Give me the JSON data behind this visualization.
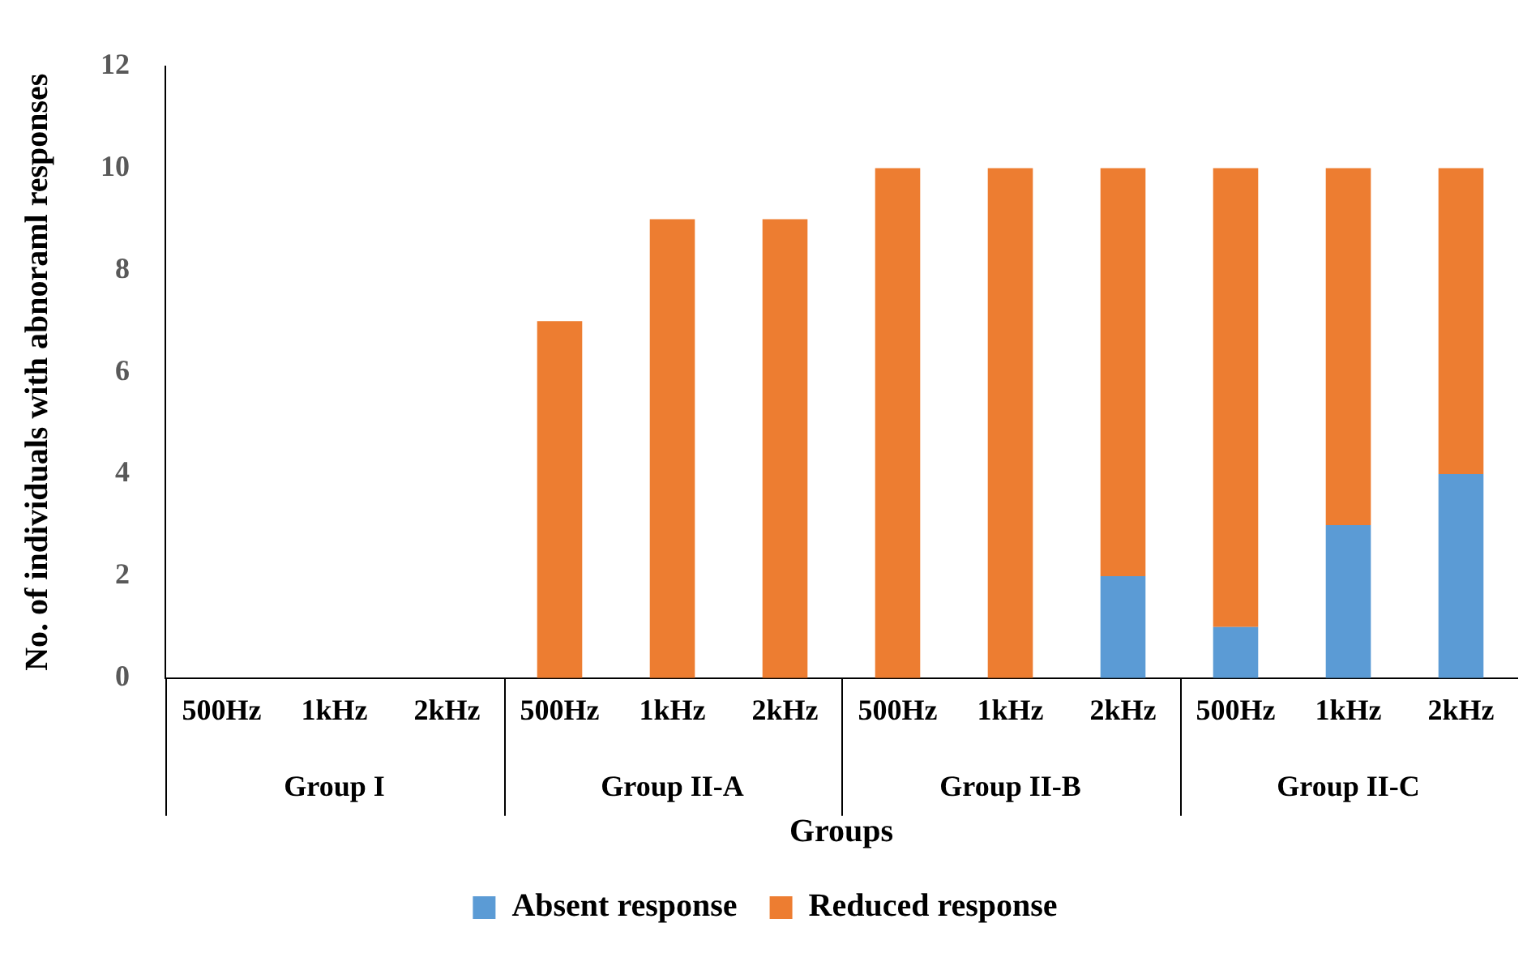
{
  "chart_data": {
    "type": "bar",
    "stacked": true,
    "xlabel": "Groups",
    "ylabel": "No. of individuals with abnoraml responses",
    "categories": [
      "500Hz",
      "1kHz",
      "2kHz",
      "500Hz",
      "1kHz",
      "2kHz",
      "500Hz",
      "1kHz",
      "2kHz",
      "500Hz",
      "1kHz",
      "2kHz"
    ],
    "series": [
      {
        "name": "Absent response",
        "color": "#5b9bd5",
        "values": [
          0,
          0,
          0,
          0,
          0,
          0,
          0,
          0,
          2,
          1,
          3,
          4
        ]
      },
      {
        "name": "Reduced response",
        "color": "#ed7d31",
        "values": [
          0,
          0,
          0,
          7,
          9,
          9,
          10,
          10,
          8,
          9,
          7,
          6
        ]
      }
    ],
    "annotations": [
      "Group I",
      "Group II-A",
      "Group II-B",
      "Group II-C"
    ],
    "ylim": [
      0,
      12
    ],
    "yticks": [
      0,
      2,
      4,
      6,
      8,
      10,
      12
    ],
    "grid": false,
    "legend": "bottom"
  }
}
